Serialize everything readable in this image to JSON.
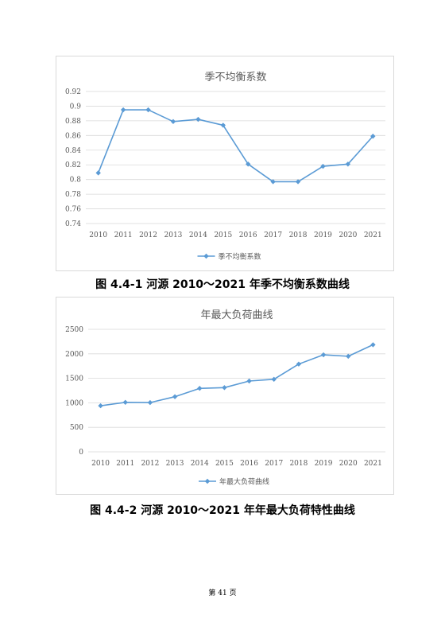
{
  "chart_data": [
    {
      "type": "line",
      "title": "季不均衡系数",
      "categories": [
        "2010",
        "2011",
        "2012",
        "2013",
        "2014",
        "2015",
        "2016",
        "2017",
        "2018",
        "2019",
        "2020",
        "2021"
      ],
      "series": [
        {
          "name": "季不均衡系数",
          "values": [
            0.809,
            0.895,
            0.895,
            0.879,
            0.882,
            0.874,
            0.821,
            0.797,
            0.797,
            0.818,
            0.821,
            0.859
          ]
        }
      ],
      "yticks": [
        "0.74",
        "0.76",
        "0.78",
        "0.8",
        "0.82",
        "0.84",
        "0.86",
        "0.88",
        "0.9",
        "0.92"
      ],
      "ylim": [
        0.74,
        0.92
      ],
      "xlabel": "",
      "ylabel": "",
      "grid": true,
      "legend_position": "bottom",
      "color": "#5b9bd5",
      "marker": "diamond"
    },
    {
      "type": "line",
      "title": "年最大负荷曲线",
      "categories": [
        "2010",
        "2011",
        "2012",
        "2013",
        "2014",
        "2015",
        "2016",
        "2017",
        "2018",
        "2019",
        "2020",
        "2021"
      ],
      "series": [
        {
          "name": "年最大负荷曲线",
          "values": [
            940,
            1010,
            1005,
            1125,
            1295,
            1310,
            1445,
            1480,
            1790,
            1980,
            1950,
            2185
          ]
        }
      ],
      "yticks": [
        "0",
        "500",
        "1000",
        "1500",
        "2000",
        "2500"
      ],
      "ylim": [
        0,
        2500
      ],
      "xlabel": "",
      "ylabel": "",
      "grid": true,
      "legend_position": "bottom",
      "color": "#5b9bd5",
      "marker": "diamond"
    }
  ],
  "captions": {
    "fig1": "图 4.4-1  河源 2010～2021 年季不均衡系数曲线",
    "fig2": "图 4.4-2  河源 2010～2021 年年最大负荷特性曲线"
  },
  "page_number": "第 41 页"
}
